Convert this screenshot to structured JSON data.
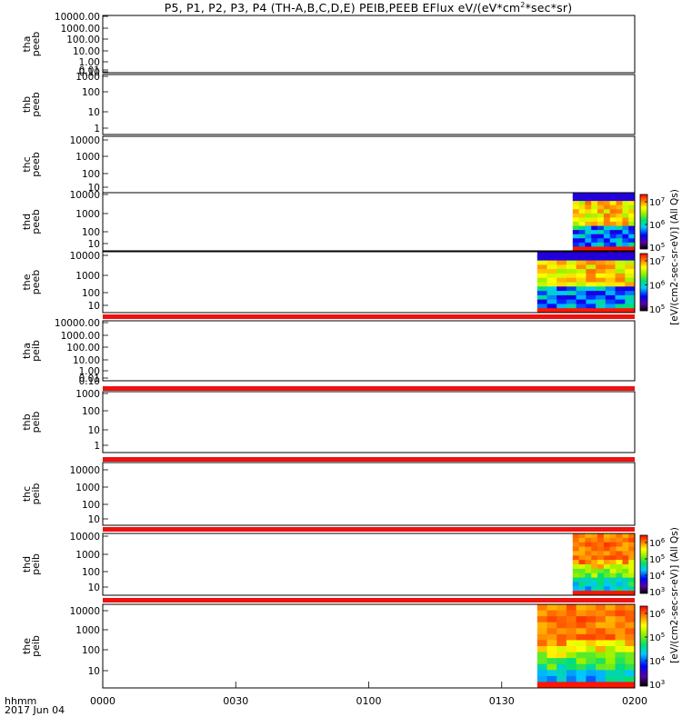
{
  "title": {
    "prefix": "P5, P1, P2, P3, P4 (TH-A,B,C,D,E) PEIB,PEEB EFlux eV/(eV*cm",
    "sup1": "2",
    "suffix": "*sec*sr)"
  },
  "xaxis": {
    "ticks": [
      "0000",
      "0030",
      "0100",
      "0130",
      "0200"
    ],
    "label_line1": "hhmm",
    "label_line2": "2017 Jun 04"
  },
  "colors": {
    "band_red": "#ee1111",
    "frame": "#000000"
  },
  "chart_data": {
    "type": "heatmap",
    "title": "P5, P1, P2, P3, P4 (TH-A,B,C,D,E) PEIB,PEEB EFlux eV/(eV*cm2*sec*sr)",
    "x_range": [
      "0000",
      "0200"
    ],
    "y_scale": "log",
    "panels": [
      {
        "id": "tha_peeb",
        "ylabel": [
          "tha",
          "peeb"
        ],
        "yticks": [
          "10000.00",
          "1000.00",
          "100.00",
          "10.00",
          "1.00",
          "0.10",
          "0.01"
        ],
        "has_data": false
      },
      {
        "id": "thb_peeb",
        "ylabel": [
          "thb",
          "peeb"
        ],
        "yticks": [
          "1000",
          "100",
          "10",
          "1"
        ],
        "has_data": false
      },
      {
        "id": "thc_peeb",
        "ylabel": [
          "thc",
          "peeb"
        ],
        "yticks": [
          "10000",
          "1000",
          "100",
          "10"
        ],
        "has_data": false
      },
      {
        "id": "thd_peeb",
        "ylabel": [
          "thd",
          "peeb"
        ],
        "yticks": [
          "10000",
          "1000",
          "100",
          "10"
        ],
        "has_data": true,
        "data_start": "0146",
        "data_end": "0200",
        "colorbar_ticks": [
          "10^7",
          "10^6",
          "10^5"
        ]
      },
      {
        "id": "the_peeb",
        "ylabel": [
          "the",
          "peeb"
        ],
        "yticks": [
          "10000",
          "1000",
          "100",
          "10"
        ],
        "has_data": true,
        "data_start": "0138",
        "data_end": "0200",
        "colorbar_ticks": [
          "10^7",
          "10^6",
          "10^5"
        ]
      },
      {
        "id": "tha_peib",
        "ylabel": [
          "tha",
          "peib"
        ],
        "yticks": [
          "10000.00",
          "1000.00",
          "100.00",
          "10.00",
          "1.00",
          "0.10",
          "0.01"
        ],
        "has_data": false
      },
      {
        "id": "thb_peib",
        "ylabel": [
          "thb",
          "peib"
        ],
        "yticks": [
          "1000",
          "100",
          "10",
          "1"
        ],
        "has_data": false
      },
      {
        "id": "thc_peib",
        "ylabel": [
          "thc",
          "peib"
        ],
        "yticks": [
          "10000",
          "1000",
          "100",
          "10"
        ],
        "has_data": false
      },
      {
        "id": "thd_peib",
        "ylabel": [
          "thd",
          "peib"
        ],
        "yticks": [
          "10000",
          "1000",
          "100",
          "10"
        ],
        "has_data": true,
        "data_start": "0146",
        "data_end": "0200",
        "colorbar_ticks": [
          "10^6",
          "10^5",
          "10^4",
          "10^3"
        ]
      },
      {
        "id": "the_peib",
        "ylabel": [
          "the",
          "peib"
        ],
        "yticks": [
          "10000",
          "1000",
          "100",
          "10"
        ],
        "has_data": true,
        "data_start": "0138",
        "data_end": "0200",
        "colorbar_ticks": [
          "10^6",
          "10^5",
          "10^4",
          "10^3"
        ]
      }
    ],
    "colorbar_labels": [
      "[eV/(cm2-sec-sr-eV)] (All Qs)",
      "[eV/(cm2-sec-sr-eV)] (All Qs)"
    ]
  }
}
